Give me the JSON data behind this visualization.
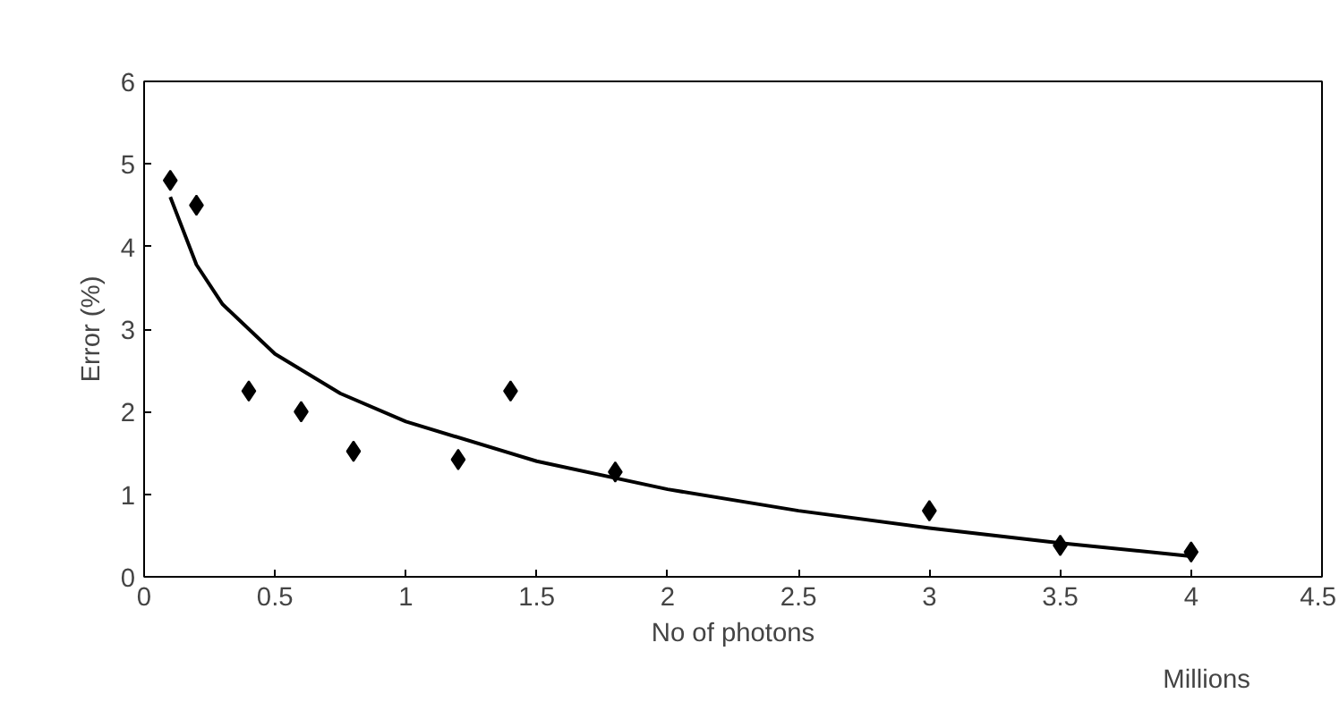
{
  "chart_data": {
    "type": "scatter",
    "ylabel": "Error (%)",
    "xlabel": "No of photons",
    "annotations": [
      "Millions"
    ],
    "xlim": [
      0,
      4.5
    ],
    "xticks": [
      0,
      0.5,
      1,
      1.5,
      2,
      2.5,
      3,
      3.5,
      4,
      4.5
    ],
    "ylim": [
      0,
      6
    ],
    "yticks": [
      0,
      1,
      2,
      3,
      4,
      5,
      6
    ],
    "grid": false,
    "series": [
      {
        "marker": "diamond",
        "color": "#000000",
        "x": [
          0.1,
          0.2,
          0.4,
          0.6,
          0.8,
          1.2,
          1.4,
          1.8,
          3.0,
          3.5,
          4.0
        ],
        "values": [
          4.8,
          4.5,
          2.25,
          2.0,
          1.52,
          1.42,
          2.25,
          1.27,
          0.8,
          0.38,
          0.3
        ]
      },
      {
        "type": "line",
        "color": "#000000",
        "line_style": "solid",
        "x": [
          0.1,
          0.2,
          0.3,
          0.5,
          0.75,
          1,
          1.5,
          2,
          2.5,
          3,
          3.5,
          4
        ],
        "values": [
          4.6,
          3.78,
          3.3,
          2.7,
          2.22,
          1.88,
          1.4,
          1.06,
          0.8,
          0.59,
          0.41,
          0.25
        ]
      }
    ]
  }
}
